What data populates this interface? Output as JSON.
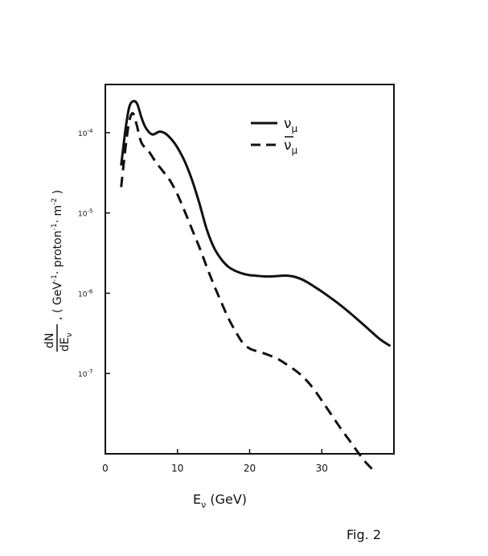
{
  "figure_label": "Fig. 2",
  "chart_data": {
    "type": "line",
    "title": "",
    "xlabel": "E_ν (GeV)",
    "xlabel_parts": {
      "E": "E",
      "sub": "ν",
      "rest": " (GeV)"
    },
    "ylabel": "dN/dE_ν , ( GeV⁻¹· proton⁻¹· m⁻² )",
    "ylabel_parts": {
      "num": "dN",
      "den": "dE",
      "den_sub": "ν",
      "rest1": ", ( GeV",
      "sup1": "-1",
      "rest2": "· proton",
      "sup2": "-1",
      "rest3": "· m",
      "sup3": "-2",
      "rest4": " )"
    },
    "xlim": [
      0,
      40
    ],
    "ylim_log10": [
      -8,
      -3.4
    ],
    "yscale": "log",
    "xticks": [
      0,
      10,
      20,
      30
    ],
    "yticks": [
      {
        "value_log10": -4,
        "base": "10",
        "exp": "-4"
      },
      {
        "value_log10": -5,
        "base": "10",
        "exp": "-5"
      },
      {
        "value_log10": -6,
        "base": "10",
        "exp": "-6"
      },
      {
        "value_log10": -7,
        "base": "10",
        "exp": "-7"
      }
    ],
    "grid": false,
    "legend_position": "top-right",
    "series": [
      {
        "name": "ν_μ",
        "label_parts": {
          "base": "ν",
          "sub": "μ",
          "bar": false
        },
        "style": "solid",
        "color": "#111111",
        "x": [
          2.2,
          2.8,
          3.3,
          3.8,
          4.4,
          5.0,
          5.6,
          6.5,
          7.5,
          8.3,
          9.2,
          10.0,
          11.0,
          12.0,
          13.0,
          14.0,
          15.0,
          16.0,
          17.0,
          18.0,
          19.0,
          20.0,
          21.0,
          22.0,
          23.0,
          24.0,
          25.0,
          26.0,
          27.0,
          28.0,
          29.0,
          30.0,
          32.0,
          34.0,
          36.0,
          38.0,
          39.5
        ],
        "y": [
          3.9e-05,
          0.00011,
          0.000205,
          0.000245,
          0.00023,
          0.000155,
          0.000115,
          9.5e-05,
          0.000103,
          9.8e-05,
          8.2e-05,
          6.5e-05,
          4.4e-05,
          2.6e-05,
          1.35e-05,
          6.5e-06,
          3.8e-06,
          2.7e-06,
          2.15e-06,
          1.9e-06,
          1.76e-06,
          1.68e-06,
          1.65e-06,
          1.62e-06,
          1.62e-06,
          1.64e-06,
          1.66e-06,
          1.62e-06,
          1.52e-06,
          1.37e-06,
          1.2e-06,
          1.05e-06,
          7.8e-07,
          5.6e-07,
          3.9e-07,
          2.7e-07,
          2.2e-07
        ]
      },
      {
        "name": "ν̄_μ",
        "label_parts": {
          "base": "ν",
          "sub": "μ",
          "bar": true
        },
        "style": "dashed",
        "color": "#111111",
        "x": [
          2.2,
          2.8,
          3.3,
          3.8,
          4.3,
          5.0,
          6.0,
          7.0,
          8.0,
          9.0,
          10.0,
          11.0,
          12.0,
          13.0,
          14.0,
          15.0,
          16.0,
          17.0,
          18.0,
          19.0,
          20.0,
          21.0,
          22.0,
          23.0,
          24.0,
          25.0,
          26.0,
          27.0,
          28.0,
          29.0,
          30.0,
          31.0,
          32.0,
          33.0,
          34.0,
          35.0,
          36.0,
          37.5
        ],
        "y": [
          2.1e-05,
          6.5e-05,
          0.000135,
          0.000175,
          0.00013,
          7.5e-05,
          5.9e-05,
          4.3e-05,
          3.3e-05,
          2.5e-05,
          1.7e-05,
          1.05e-05,
          6.3e-06,
          3.8e-06,
          2.2e-06,
          1.3e-06,
          8e-07,
          5e-07,
          3.4e-07,
          2.45e-07,
          2.05e-07,
          1.9e-07,
          1.78e-07,
          1.65e-07,
          1.5e-07,
          1.32e-07,
          1.15e-07,
          9.8e-08,
          8e-08,
          6.2e-08,
          4.6e-08,
          3.4e-08,
          2.5e-08,
          1.85e-08,
          1.4e-08,
          1.05e-08,
          8e-09,
          5.8e-09
        ]
      }
    ]
  }
}
